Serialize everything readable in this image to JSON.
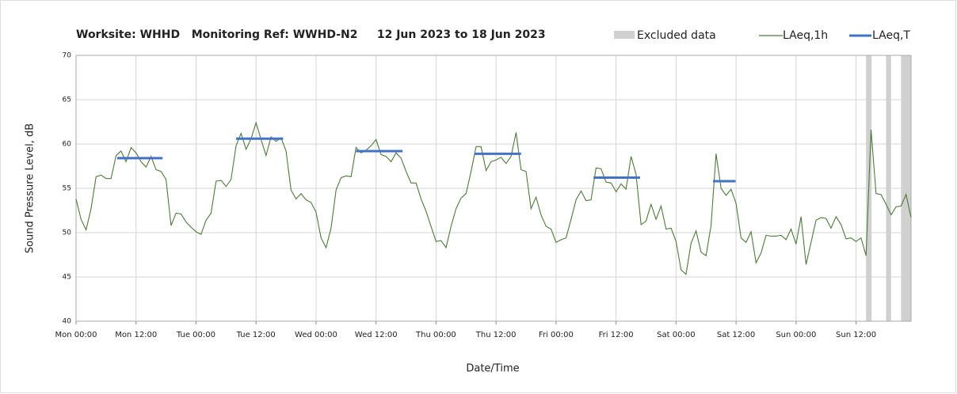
{
  "chart_data": {
    "type": "line",
    "title": "Worksite: WHHD   Monitoring Ref: WWHD-N2     12 Jun 2023 to 18 Jun 2023",
    "xlabel": "Date/Time",
    "ylabel": "Sound Pressure Level, dB",
    "x": [
      0,
      1,
      2,
      3,
      4,
      5,
      6,
      7,
      8,
      9,
      10,
      11,
      12,
      13,
      14,
      15,
      16,
      17,
      18,
      19,
      20,
      21,
      22,
      23,
      24,
      25,
      26,
      27,
      28,
      29,
      30,
      31,
      32,
      33,
      34,
      35,
      36,
      37,
      38,
      39,
      40,
      41,
      42,
      43,
      44,
      45,
      46,
      47,
      48,
      49,
      50,
      51,
      52,
      53,
      54,
      55,
      56,
      57,
      58,
      59,
      60,
      61,
      62,
      63,
      64,
      65,
      66,
      67,
      68,
      69,
      70,
      71,
      72,
      73,
      74,
      75,
      76,
      77,
      78,
      79,
      80,
      81,
      82,
      83,
      84,
      85,
      86,
      87,
      88,
      89,
      90,
      91,
      92,
      93,
      94,
      95,
      96,
      97,
      98,
      99,
      100,
      101,
      102,
      103,
      104,
      105,
      106,
      107,
      108,
      109,
      110,
      111,
      112,
      113,
      114,
      115,
      116,
      117,
      118,
      119,
      120,
      121,
      122,
      123,
      124,
      125,
      126,
      127,
      128,
      129,
      130,
      131,
      132,
      133,
      134,
      135,
      136,
      137,
      138,
      139,
      140,
      141,
      142,
      143,
      144,
      145,
      146,
      147,
      148,
      149,
      150,
      151,
      152,
      153,
      154,
      155,
      156,
      157,
      158,
      159,
      160,
      161,
      162,
      163,
      164,
      165,
      166,
      167
    ],
    "series": [
      {
        "name": "LAeq,1h",
        "color": "#4e7a3a",
        "values": [
          53.8,
          51.5,
          50.3,
          52.7,
          56.3,
          56.5,
          56.1,
          56.1,
          58.7,
          59.2,
          58,
          59.6,
          59,
          58,
          57.4,
          58.6,
          57.1,
          56.9,
          56,
          50.8,
          52.2,
          52.1,
          51.2,
          50.6,
          50.1,
          49.8,
          51.4,
          52.2,
          55.8,
          55.9,
          55.2,
          56,
          59.8,
          61.2,
          59.4,
          60.6,
          62.4,
          60.5,
          58.7,
          60.8,
          60.3,
          60.7,
          59.2,
          54.8,
          53.8,
          54.4,
          53.7,
          53.4,
          52.3,
          49.4,
          48.3,
          50.5,
          54.8,
          56.2,
          56.4,
          56.3,
          59.6,
          59,
          59.3,
          59.8,
          60.5,
          58.8,
          58.6,
          58,
          59,
          58.4,
          56.9,
          55.6,
          55.6,
          53.8,
          52.4,
          50.7,
          49,
          49.1,
          48.3,
          50.7,
          52.7,
          53.9,
          54.4,
          56.9,
          59.7,
          59.7,
          57,
          58,
          58.2,
          58.5,
          57.8,
          58.6,
          61.3,
          57.1,
          56.9,
          52.7,
          54,
          52,
          50.7,
          50.4,
          48.9,
          49.2,
          49.4,
          51.5,
          53.7,
          54.7,
          53.6,
          53.7,
          57.3,
          57.2,
          55.7,
          55.6,
          54.6,
          55.5,
          54.9,
          58.6,
          56.6,
          50.9,
          51.3,
          53.2,
          51.5,
          53,
          50.4,
          50.5,
          49,
          45.8,
          45.3,
          48.8,
          50.2,
          47.8,
          47.4,
          50.8,
          58.9,
          55,
          54.2,
          54.9,
          53.3,
          49.4,
          48.9,
          50.1,
          46.6,
          47.7,
          49.7,
          49.6,
          49.6,
          49.7,
          49.2,
          50.4,
          48.7,
          51.8,
          46.4,
          48.9,
          51.4,
          51.7,
          51.6,
          50.5,
          51.8,
          50.9,
          49.3,
          49.4,
          49,
          49.4,
          47.4,
          61.6,
          54.4,
          54.3,
          53.2,
          52,
          52.9,
          53,
          54.3,
          51.7
        ]
      }
    ],
    "periods": {
      "name": "LAeq,T",
      "color": "#4472c4",
      "segments": [
        {
          "x": [
            8.2,
            17.3
          ],
          "value": 58.4
        },
        {
          "x": [
            32,
            41.4
          ],
          "value": 60.6
        },
        {
          "x": [
            56,
            65.3
          ],
          "value": 59.2
        },
        {
          "x": [
            79.7,
            89
          ],
          "value": 58.9
        },
        {
          "x": [
            103.5,
            112.8
          ],
          "value": 56.2
        },
        {
          "x": [
            127.4,
            131.9
          ],
          "value": 55.8
        }
      ]
    },
    "excluded": {
      "name": "Excluded data",
      "color": "#d0d0d0",
      "spans": [
        [
          158,
          159.1
        ],
        [
          162,
          163
        ],
        [
          165,
          167
        ]
      ]
    },
    "xlim": [
      0,
      167
    ],
    "ylim": [
      40,
      70
    ],
    "xticks": [
      {
        "value": 0,
        "label": "Mon 00:00"
      },
      {
        "value": 12,
        "label": "Mon 12:00"
      },
      {
        "value": 24,
        "label": "Tue 00:00"
      },
      {
        "value": 36,
        "label": "Tue 12:00"
      },
      {
        "value": 48,
        "label": "Wed 00:00"
      },
      {
        "value": 60,
        "label": "Wed 12:00"
      },
      {
        "value": 72,
        "label": "Thu 00:00"
      },
      {
        "value": 84,
        "label": "Thu 12:00"
      },
      {
        "value": 96,
        "label": "Fri 00:00"
      },
      {
        "value": 108,
        "label": "Fri 12:00"
      },
      {
        "value": 120,
        "label": "Sat 00:00"
      },
      {
        "value": 132,
        "label": "Sat 12:00"
      },
      {
        "value": 144,
        "label": "Sun 00:00"
      },
      {
        "value": 156,
        "label": "Sun 12:00"
      }
    ],
    "yticks": [
      40,
      45,
      50,
      55,
      60,
      65,
      70
    ],
    "grid": true
  }
}
